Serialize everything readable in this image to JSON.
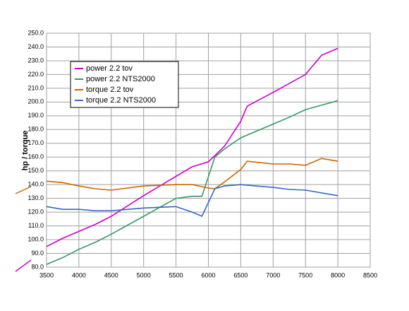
{
  "chart_data": {
    "type": "line",
    "ylabel": "hp / torque",
    "xlim": [
      3500,
      8500
    ],
    "xticks": [
      3500,
      4000,
      4500,
      5000,
      5500,
      6000,
      6500,
      7000,
      7500,
      8000,
      8500
    ],
    "ylim": [
      80,
      250
    ],
    "yticks": [
      {
        "value": 80,
        "label": "80.0"
      },
      {
        "value": 90,
        "label": "90.0"
      },
      {
        "value": 100,
        "label": "100.0"
      },
      {
        "value": 110,
        "label": "110.0"
      },
      {
        "value": 120,
        "label": "120.0"
      },
      {
        "value": 130,
        "label": "130.0"
      },
      {
        "value": 140,
        "label": "140.0"
      },
      {
        "value": 150,
        "label": "150.0"
      },
      {
        "value": 160,
        "label": "160.0"
      },
      {
        "value": 170,
        "label": "170.0"
      },
      {
        "value": 180,
        "label": "180.0"
      },
      {
        "value": 190,
        "label": "190.0"
      },
      {
        "value": 200,
        "label": "200.0"
      },
      {
        "value": 210,
        "label": "210.0"
      },
      {
        "value": 220,
        "label": "220.0"
      },
      {
        "value": 230,
        "label": "230.0"
      },
      {
        "value": 240,
        "label": "240.0"
      },
      {
        "value": 250,
        "label": "250.0"
      }
    ],
    "grid": true,
    "legend": "upper left",
    "series": [
      {
        "name": "power 2.2 tov",
        "color": "#cc00cc",
        "x": [
          3500,
          3750,
          4000,
          4250,
          4500,
          5000,
          5500,
          5750,
          6000,
          6250,
          6500,
          6600,
          7000,
          7500,
          7750,
          8000
        ],
        "values": [
          95,
          101,
          106,
          111,
          117,
          132,
          146,
          153,
          156.5,
          168,
          186,
          197,
          207,
          220,
          234,
          239
        ]
      },
      {
        "name": "power 2.2 NTS2000",
        "color": "#339966",
        "x": [
          3500,
          3750,
          4000,
          4250,
          4500,
          5000,
          5500,
          5750,
          5900,
          6100,
          6250,
          6500,
          7000,
          7250,
          7500,
          8000
        ],
        "values": [
          82,
          87,
          93,
          98,
          104,
          117,
          130,
          131.5,
          131.5,
          160,
          166,
          174,
          184,
          189,
          194.5,
          201
        ]
      },
      {
        "name": "torque 2.2 tov",
        "color": "#cc6600",
        "x": [
          3500,
          3750,
          4000,
          4250,
          4500,
          5000,
          5500,
          5750,
          6000,
          6100,
          6250,
          6500,
          6600,
          7000,
          7250,
          7500,
          7750,
          8000
        ],
        "values": [
          142.5,
          141.5,
          139,
          137,
          136,
          139,
          140,
          140,
          137.5,
          137,
          142,
          151,
          157,
          155,
          155,
          154,
          159,
          157
        ]
      },
      {
        "name": "torque 2.2 NTS2000",
        "color": "#3366cc",
        "x": [
          3500,
          3750,
          4000,
          4250,
          4500,
          5000,
          5500,
          5750,
          5900,
          6100,
          6250,
          6500,
          7000,
          7250,
          7500,
          8000
        ],
        "values": [
          124,
          122,
          122,
          121,
          121,
          123,
          124,
          120,
          117,
          137,
          139,
          140,
          138,
          136.5,
          136,
          132
        ]
      }
    ]
  }
}
